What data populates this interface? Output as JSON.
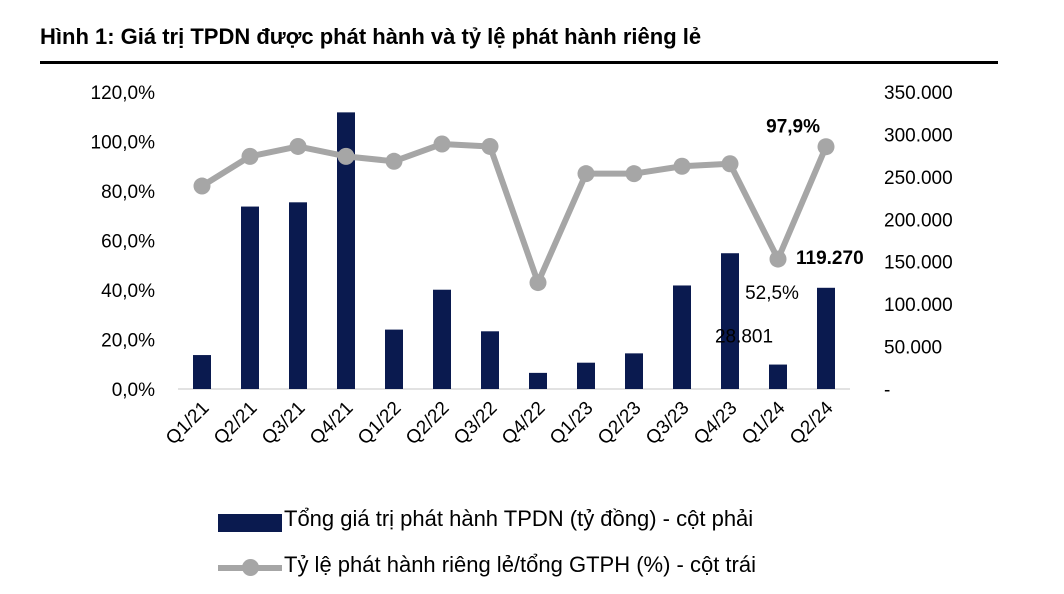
{
  "figure": {
    "title": "Hình 1: Giá trị TPDN được phát hành và tỷ lệ phát hành riêng lẻ"
  },
  "chart_data": {
    "type": "bar",
    "categories": [
      "Q1/21",
      "Q2/21",
      "Q3/21",
      "Q4/21",
      "Q1/22",
      "Q2/22",
      "Q3/22",
      "Q4/22",
      "Q1/23",
      "Q2/23",
      "Q3/23",
      "Q4/23",
      "Q1/24",
      "Q2/24"
    ],
    "y_left": {
      "ylim": [
        0,
        120
      ],
      "ticks": [
        0,
        20,
        40,
        60,
        80,
        100,
        120
      ],
      "tick_labels": [
        "0,0%",
        "20,0%",
        "40,0%",
        "60,0%",
        "80,0%",
        "100,0%",
        "120,0%"
      ]
    },
    "y_right": {
      "ylim": [
        0,
        350000
      ],
      "ticks": [
        0,
        50000,
        100000,
        150000,
        200000,
        250000,
        300000,
        350000
      ],
      "tick_labels": [
        "-",
        "50.000",
        "100.000",
        "150.000",
        "200.000",
        "250.000",
        "300.000",
        "350.000"
      ]
    },
    "series": [
      {
        "name": "Tổng giá trị phát hành TPDN (tỷ đồng) - cột phải",
        "type": "bar",
        "axis": "right",
        "color": "#0a1a4f",
        "values": [
          40000,
          215000,
          220000,
          326000,
          70000,
          117000,
          68000,
          19000,
          31000,
          42000,
          122000,
          160000,
          28801,
          119270
        ]
      },
      {
        "name": "Tỷ lệ phát hành riêng lẻ/tổng GTPH (%) - cột trái",
        "type": "line",
        "axis": "left",
        "color": "#a6a6a6",
        "values": [
          82,
          94,
          98,
          94,
          92,
          99,
          98,
          43,
          87,
          87,
          90,
          91,
          52.5,
          97.9
        ]
      }
    ],
    "data_labels": [
      {
        "series": 1,
        "index": 13,
        "text": "97,9%",
        "bold": true
      },
      {
        "series": 0,
        "index": 13,
        "text": "119.270",
        "bold": true
      },
      {
        "series": 1,
        "index": 12,
        "text": "52,5%",
        "bold": false
      },
      {
        "series": 0,
        "index": 12,
        "text": "28.801",
        "bold": false
      }
    ],
    "legend": {
      "position": "bottom",
      "entries": [
        "Tổng giá trị phát hành TPDN (tỷ đồng) - cột phải",
        "Tỷ lệ phát hành riêng lẻ/tổng GTPH (%) - cột trái"
      ]
    },
    "grid": false
  }
}
